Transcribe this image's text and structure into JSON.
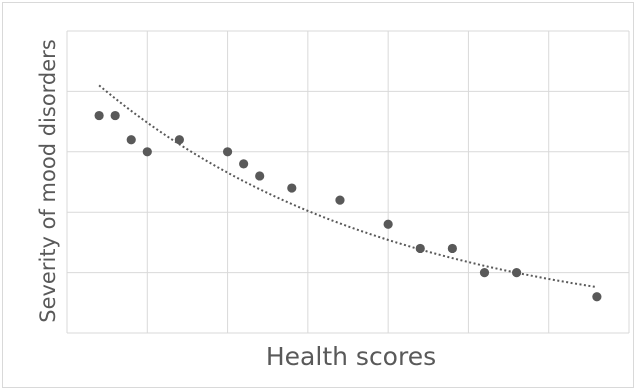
{
  "chart_data": {
    "type": "scatter",
    "title": "",
    "xlabel": "Health scores",
    "ylabel": "Severity  of mood disorders",
    "x_ticks_shown": false,
    "y_ticks_shown": false,
    "xlim": [
      0,
      35
    ],
    "ylim": [
      0,
      25
    ],
    "grid": true,
    "legend": "none",
    "colors": {
      "marker": "#595959",
      "trendline": "#595959",
      "grid": "#d9d9d9"
    },
    "series": [
      {
        "x": [
          2,
          3,
          4,
          5,
          7,
          10,
          11,
          12,
          14,
          17,
          20,
          22,
          24,
          26,
          28,
          33
        ],
        "y": [
          18,
          18,
          16,
          15,
          16,
          15,
          14,
          13,
          12,
          11,
          9,
          7,
          7,
          5,
          5,
          3
        ]
      }
    ],
    "trendline": {
      "type": "exponential",
      "style": "dotted",
      "x_range": [
        2,
        33
      ],
      "y_start": 20.5,
      "y_end": 3.8
    }
  }
}
